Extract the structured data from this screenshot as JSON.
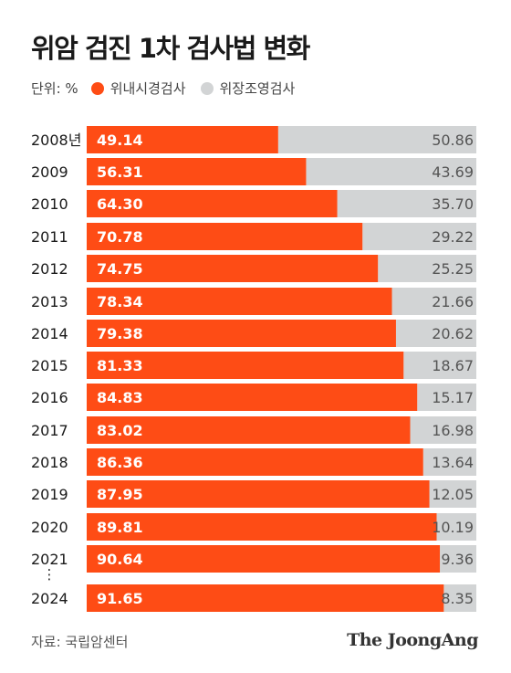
{
  "title": "위암 검진 1차 검사법 변화",
  "unit": "단위: %",
  "source": "자료: 국립암센터",
  "brand": "The JoongAng",
  "colors": {
    "endoscopy": "#fe4c15",
    "radiography": "#d2d4d5"
  },
  "chart_data": {
    "type": "bar",
    "orientation": "horizontal",
    "stacked": true,
    "categories": [
      "2008년",
      "2009",
      "2010",
      "2011",
      "2012",
      "2013",
      "2014",
      "2015",
      "2016",
      "2017",
      "2018",
      "2019",
      "2020",
      "2021",
      "2024"
    ],
    "series": [
      {
        "name": "위내시경검사",
        "values": [
          49.14,
          56.31,
          64.3,
          70.78,
          74.75,
          78.34,
          79.38,
          81.33,
          84.83,
          83.02,
          86.36,
          87.95,
          89.81,
          90.64,
          91.65
        ]
      },
      {
        "name": "위장조영검사",
        "values": [
          50.86,
          43.69,
          35.7,
          29.22,
          25.25,
          21.66,
          20.62,
          18.67,
          15.17,
          16.98,
          13.64,
          12.05,
          10.19,
          9.36,
          8.35
        ]
      }
    ],
    "xlim": [
      0,
      100
    ],
    "gap_marker": "⋮"
  }
}
